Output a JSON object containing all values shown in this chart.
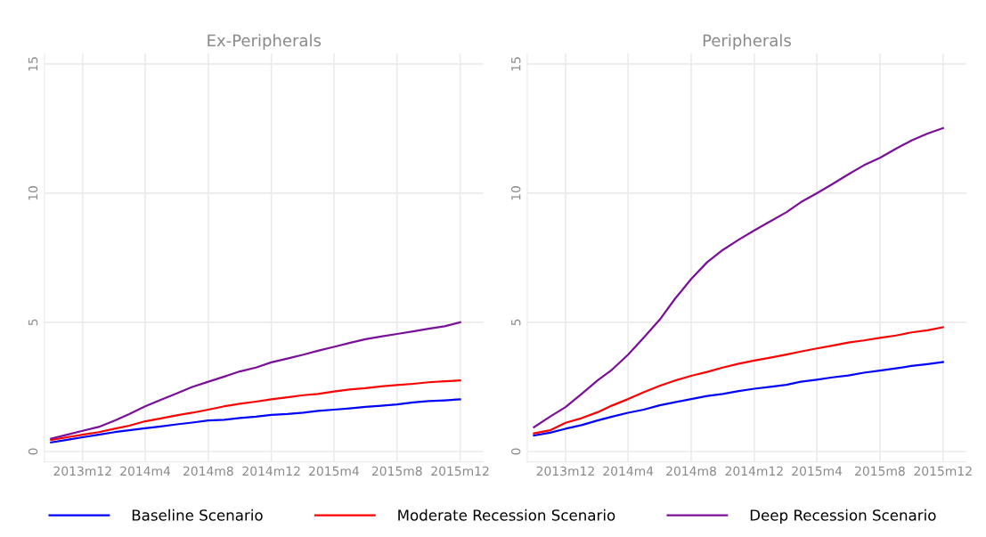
{
  "chart_data": [
    {
      "type": "line",
      "title": "Ex-Peripherals",
      "x": [
        "2013-10",
        "2013-11",
        "2013-12",
        "2014-01",
        "2014-02",
        "2014-03",
        "2014-04",
        "2014-05",
        "2014-06",
        "2014-07",
        "2014-08",
        "2014-09",
        "2014-10",
        "2014-11",
        "2014-12",
        "2015-01",
        "2015-02",
        "2015-03",
        "2015-04",
        "2015-05",
        "2015-06",
        "2015-07",
        "2015-08",
        "2015-09",
        "2015-10",
        "2015-11",
        "2015-12"
      ],
      "series": [
        {
          "name": "Baseline Scenario",
          "color": "#0000ff",
          "values": [
            0.35,
            0.45,
            0.55,
            0.65,
            0.75,
            0.82,
            0.9,
            0.97,
            1.05,
            1.12,
            1.2,
            1.23,
            1.3,
            1.35,
            1.42,
            1.45,
            1.5,
            1.57,
            1.62,
            1.67,
            1.73,
            1.77,
            1.82,
            1.9,
            1.95,
            1.98,
            2.02
          ]
        },
        {
          "name": "Moderate Recession Scenario",
          "color": "#ff0000",
          "values": [
            0.45,
            0.55,
            0.65,
            0.75,
            0.88,
            1.0,
            1.17,
            1.28,
            1.4,
            1.5,
            1.62,
            1.75,
            1.85,
            1.93,
            2.02,
            2.1,
            2.18,
            2.23,
            2.32,
            2.4,
            2.45,
            2.52,
            2.57,
            2.62,
            2.68,
            2.72,
            2.75
          ]
        },
        {
          "name": "Deep Recession Scenario",
          "color": "#7a0f99",
          "values": [
            0.5,
            0.65,
            0.8,
            0.95,
            1.2,
            1.45,
            1.75,
            2.0,
            2.25,
            2.5,
            2.7,
            2.9,
            3.1,
            3.25,
            3.45,
            3.6,
            3.75,
            3.9,
            4.05,
            4.2,
            4.35,
            4.45,
            4.55,
            4.65,
            4.75,
            4.85,
            5.0
          ]
        }
      ],
      "xlim": [
        "2013-09-18",
        "2016-01-15"
      ],
      "ylim": [
        -0.4,
        15.4
      ],
      "yticks": [
        0,
        5,
        10,
        15
      ],
      "xticks": [
        {
          "value": "2013-12",
          "label": "2013m12"
        },
        {
          "value": "2014-04",
          "label": "2014m4"
        },
        {
          "value": "2014-08",
          "label": "2014m8"
        },
        {
          "value": "2014-12",
          "label": "2014m12"
        },
        {
          "value": "2015-04",
          "label": "2015m4"
        },
        {
          "value": "2015-08",
          "label": "2015m8"
        },
        {
          "value": "2015-12",
          "label": "2015m12"
        }
      ],
      "grid": true,
      "legend": "bottom"
    },
    {
      "type": "line",
      "title": "Peripherals",
      "x": [
        "2013-10",
        "2013-11",
        "2013-12",
        "2014-01",
        "2014-02",
        "2014-03",
        "2014-04",
        "2014-05",
        "2014-06",
        "2014-07",
        "2014-08",
        "2014-09",
        "2014-10",
        "2014-11",
        "2014-12",
        "2015-01",
        "2015-02",
        "2015-03",
        "2015-04",
        "2015-05",
        "2015-06",
        "2015-07",
        "2015-08",
        "2015-09",
        "2015-10",
        "2015-11",
        "2015-12"
      ],
      "series": [
        {
          "name": "Baseline Scenario",
          "color": "#0000ff",
          "values": [
            0.62,
            0.73,
            0.88,
            1.02,
            1.2,
            1.35,
            1.5,
            1.62,
            1.79,
            1.91,
            2.03,
            2.15,
            2.23,
            2.34,
            2.43,
            2.5,
            2.58,
            2.7,
            2.78,
            2.87,
            2.94,
            3.05,
            3.13,
            3.22,
            3.31,
            3.38,
            3.46
          ]
        },
        {
          "name": "Moderate Recession Scenario",
          "color": "#ff0000",
          "values": [
            0.7,
            0.82,
            1.11,
            1.29,
            1.52,
            1.78,
            2.03,
            2.29,
            2.54,
            2.75,
            2.93,
            3.08,
            3.25,
            3.4,
            3.52,
            3.63,
            3.75,
            3.87,
            3.99,
            4.1,
            4.22,
            4.3,
            4.4,
            4.49,
            4.61,
            4.69,
            4.81
          ]
        },
        {
          "name": "Deep Recession Scenario",
          "color": "#7a0f99",
          "values": [
            0.94,
            1.35,
            1.72,
            2.23,
            2.75,
            3.17,
            3.75,
            4.4,
            5.1,
            5.92,
            6.68,
            7.33,
            7.8,
            8.2,
            8.56,
            8.91,
            9.26,
            9.65,
            10.0,
            10.35,
            10.73,
            11.08,
            11.37,
            11.72,
            12.04,
            12.31,
            12.52
          ]
        }
      ],
      "xlim": [
        "2013-09-18",
        "2016-01-15"
      ],
      "ylim": [
        -0.4,
        15.4
      ],
      "yticks": [
        0,
        5,
        10,
        15
      ],
      "xticks": [
        {
          "value": "2013-12",
          "label": "2013m12"
        },
        {
          "value": "2014-04",
          "label": "2014m4"
        },
        {
          "value": "2014-08",
          "label": "2014m8"
        },
        {
          "value": "2014-12",
          "label": "2014m12"
        },
        {
          "value": "2015-04",
          "label": "2015m4"
        },
        {
          "value": "2015-08",
          "label": "2015m8"
        },
        {
          "value": "2015-12",
          "label": "2015m12"
        }
      ],
      "grid": true,
      "legend": "bottom"
    }
  ]
}
